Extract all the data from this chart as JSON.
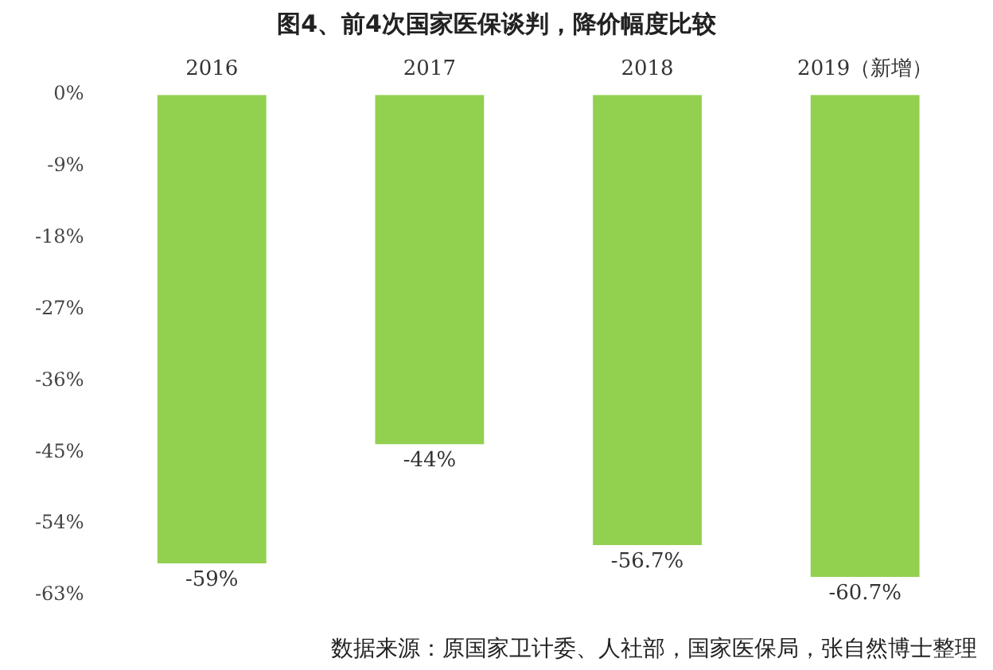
{
  "chart_data": {
    "type": "bar",
    "title": "图4、前4次国家医保谈判，降价幅度比较",
    "categories": [
      "2016",
      "2017",
      "2018",
      "2019（新增）"
    ],
    "values": [
      -59,
      -44,
      -56.7,
      -60.7
    ],
    "value_labels": [
      "-59%",
      "-44%",
      "-56.7%",
      "-60.7%"
    ],
    "color": "#92d050",
    "ylim": [
      -63,
      0
    ],
    "yticks": [
      {
        "value": 0,
        "label": "0%"
      },
      {
        "value": -9,
        "label": "-9%"
      },
      {
        "value": -18,
        "label": "-18%"
      },
      {
        "value": -27,
        "label": "-27%"
      },
      {
        "value": -36,
        "label": "-36%"
      },
      {
        "value": -45,
        "label": "-45%"
      },
      {
        "value": -54,
        "label": "-54%"
      },
      {
        "value": -63,
        "label": "-63%"
      }
    ],
    "grid": false,
    "legend": false,
    "annotations": [
      "数据来源：原国家卫计委、人社部，国家医保局，张自然博士整理"
    ]
  }
}
